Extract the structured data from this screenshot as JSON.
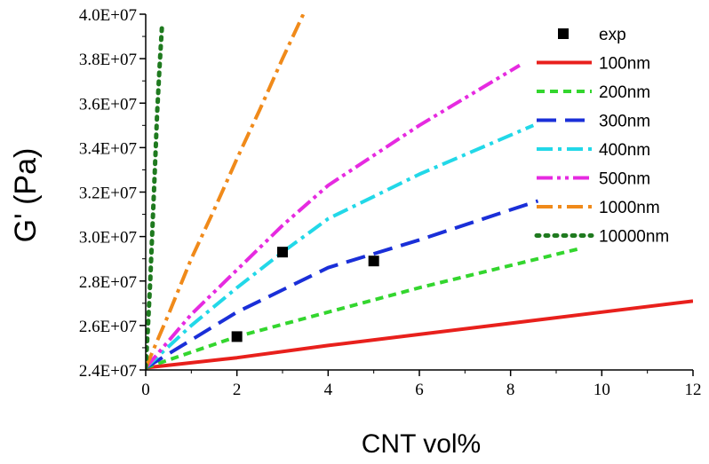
{
  "chart_data": {
    "type": "line",
    "title": "",
    "xlabel": "CNT vol%",
    "ylabel": "G' (Pa)",
    "xlim": [
      0,
      12
    ],
    "ylim": [
      24000000,
      40000000
    ],
    "x_ticks": [
      0,
      2,
      4,
      6,
      8,
      10,
      12
    ],
    "x_tick_labels": [
      "0",
      "2",
      "4",
      "6",
      "8",
      "10",
      "12"
    ],
    "y_ticks": [
      24000000,
      26000000,
      28000000,
      30000000,
      32000000,
      34000000,
      36000000,
      38000000,
      40000000
    ],
    "y_tick_labels": [
      "2.4E+07",
      "2.6E+07",
      "2.8E+07",
      "3.0E+07",
      "3.2E+07",
      "3.4E+07",
      "3.6E+07",
      "3.8E+07",
      "4.0E+07"
    ],
    "grid": false,
    "legend_position": "top-right",
    "series": [
      {
        "name": "exp",
        "kind": "scatter",
        "color": "#000000",
        "x": [
          2,
          3,
          5
        ],
        "y": [
          25500000,
          29300000,
          28900000
        ]
      },
      {
        "name": "100nm",
        "kind": "line",
        "color": "#e8201c",
        "dash": "solid",
        "x": [
          0,
          2,
          4,
          6,
          8,
          10,
          12
        ],
        "y": [
          24100000,
          24550000,
          25100000,
          25600000,
          26100000,
          26600000,
          27100000
        ]
      },
      {
        "name": "200nm",
        "kind": "line",
        "color": "#33d62e",
        "dash": "short",
        "x": [
          0,
          2,
          4,
          6,
          8,
          9.5
        ],
        "y": [
          24100000,
          25500000,
          26600000,
          27700000,
          28700000,
          29450000
        ]
      },
      {
        "name": "300nm",
        "kind": "line",
        "color": "#1a2fd8",
        "dash": "long",
        "x": [
          0,
          2,
          4,
          6,
          8,
          8.6
        ],
        "y": [
          24100000,
          26600000,
          28600000,
          29850000,
          31200000,
          31600000
        ]
      },
      {
        "name": "400nm",
        "kind": "line",
        "color": "#22d8e8",
        "dash": "dashdot",
        "x": [
          0,
          1,
          2,
          3,
          4,
          6,
          8.5
        ],
        "y": [
          24100000,
          26000000,
          27700000,
          29300000,
          30800000,
          32800000,
          35000000
        ]
      },
      {
        "name": "500nm",
        "kind": "line",
        "color": "#e62ae0",
        "dash": "dashdotdot",
        "x": [
          0,
          1,
          2,
          3,
          4,
          6,
          8.2
        ],
        "y": [
          24100000,
          26500000,
          28500000,
          30500000,
          32300000,
          35000000,
          37700000
        ]
      },
      {
        "name": "1000nm",
        "kind": "line",
        "color": "#f08a1a",
        "dash": "dashdot",
        "x": [
          0,
          0.5,
          1,
          1.5,
          2,
          2.5,
          3,
          3.5
        ],
        "y": [
          24100000,
          26500000,
          29000000,
          31200000,
          33500000,
          35700000,
          38000000,
          40200000
        ]
      },
      {
        "name": "10000nm",
        "kind": "line",
        "color": "#1f7a1f",
        "dash": "dot",
        "x": [
          0,
          0.05,
          0.1,
          0.15,
          0.2,
          0.25,
          0.3,
          0.36
        ],
        "y": [
          24100000,
          26000000,
          28000000,
          30500000,
          33000000,
          35500000,
          37500000,
          39600000
        ]
      }
    ]
  }
}
